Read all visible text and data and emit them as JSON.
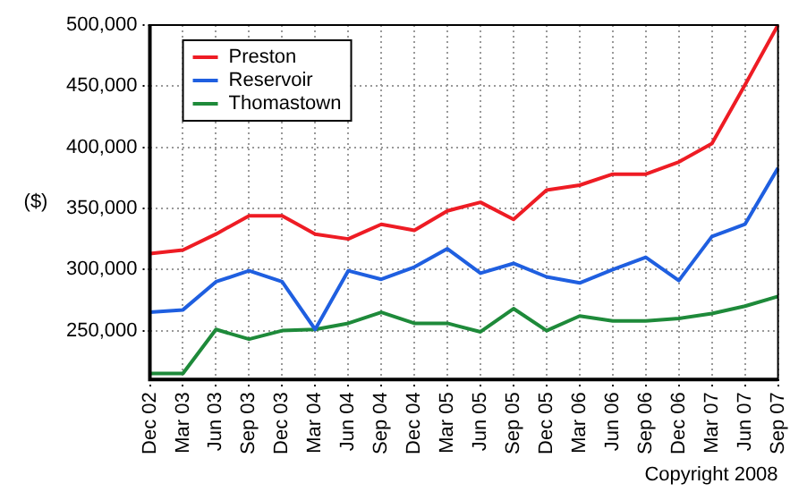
{
  "chart_data": {
    "type": "line",
    "ylabel": "($)",
    "categories": [
      "Dec 02",
      "Mar 03",
      "Jun 03",
      "Sep 03",
      "Dec 03",
      "Mar 04",
      "Jun 04",
      "Sep 04",
      "Dec 04",
      "Mar 05",
      "Jun 05",
      "Sep 05",
      "Dec 05",
      "Mar 06",
      "Jun 06",
      "Sep 06",
      "Dec 06",
      "Mar 07",
      "Jun 07",
      "Sep 07"
    ],
    "series": [
      {
        "name": "Preston",
        "color": "#ee1c24",
        "values": [
          313000,
          316000,
          329000,
          344000,
          344000,
          329000,
          325000,
          337000,
          332000,
          348000,
          355000,
          341000,
          365000,
          369000,
          378000,
          378000,
          388000,
          403000,
          451000,
          500000
        ]
      },
      {
        "name": "Reservoir",
        "color": "#1f5fe0",
        "values": [
          265000,
          267000,
          290000,
          299000,
          290000,
          251000,
          299000,
          292000,
          302000,
          317000,
          297000,
          305000,
          294000,
          289000,
          300000,
          310000,
          291000,
          327000,
          337000,
          383000
        ]
      },
      {
        "name": "Thomastown",
        "color": "#1e8a3a",
        "values": [
          215000,
          215000,
          251000,
          243000,
          250000,
          251000,
          256000,
          265000,
          256000,
          256000,
          249000,
          268000,
          250000,
          262000,
          258000,
          258000,
          260000,
          264000,
          270000,
          278000
        ]
      }
    ],
    "ylim": [
      210000,
      500000
    ],
    "yticks": [
      {
        "value": 250000,
        "label": "250,000"
      },
      {
        "value": 300000,
        "label": "300,000"
      },
      {
        "value": 350000,
        "label": "350,000"
      },
      {
        "value": 400000,
        "label": "400,000"
      },
      {
        "value": 450000,
        "label": "450,000"
      },
      {
        "value": 500000,
        "label": "500,000"
      }
    ],
    "grid": true,
    "legend": "top left",
    "marker": "none",
    "line_style": "solid",
    "annotations": [
      "Copyright 2008"
    ]
  }
}
